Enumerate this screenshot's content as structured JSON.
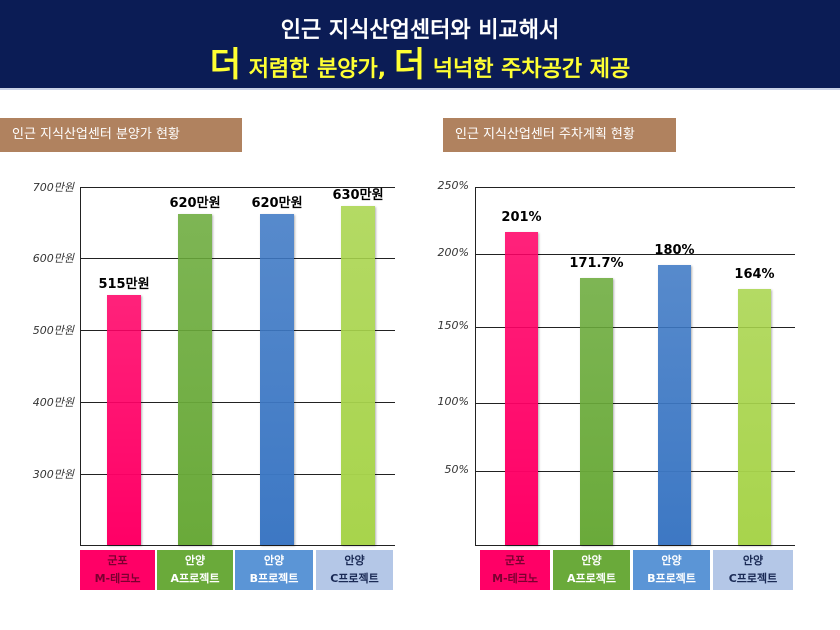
{
  "header": {
    "line1": "인근 지식산업센터와 비교해서",
    "line2_big1": "더",
    "line2_text1": "저렴한 분양가,",
    "line2_big2": "더",
    "line2_text2": "넉넉한 주차공간 제공"
  },
  "colors": [
    "#ff0066",
    "#6aaa3a",
    "#3d78c4",
    "#a8d44c"
  ],
  "cat_bg": [
    "#ff0066",
    "#6aaa3a",
    "#5b95d6",
    "#b4c7e7"
  ],
  "cat_fg": [
    "#7a0030",
    "#ffffff",
    "#ffffff",
    "#1a2a55"
  ],
  "chart_data": [
    {
      "type": "bar",
      "title": "인근 지식산업센터 분양가 현황",
      "categories": [
        [
          "군포",
          "M-테크노"
        ],
        [
          "안양",
          "A프로젝트"
        ],
        [
          "안양",
          "B프로젝트"
        ],
        [
          "안양",
          "C프로젝트"
        ]
      ],
      "values": [
        515,
        620,
        620,
        630
      ],
      "labels": [
        "515만원",
        "620만원",
        "620만원",
        "630만원"
      ],
      "yticks": [
        "300만원",
        "400만원",
        "500만원",
        "600만원",
        "700만원"
      ]
    },
    {
      "type": "bar",
      "title": "인근 지식산업센터 주차계획 현황",
      "categories": [
        [
          "군포",
          "M-테크노"
        ],
        [
          "안양",
          "A프로젝트"
        ],
        [
          "안양",
          "B프로젝트"
        ],
        [
          "안양",
          "C프로젝트"
        ]
      ],
      "values": [
        201,
        171.7,
        180,
        164
      ],
      "labels": [
        "201%",
        "171.7%",
        "180%",
        "164%"
      ],
      "yticks": [
        "50%",
        "100%",
        "150%",
        "200%",
        "250%"
      ]
    }
  ]
}
